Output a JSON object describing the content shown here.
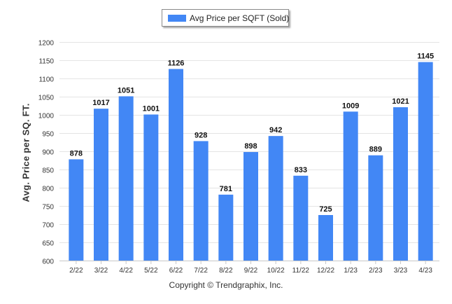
{
  "chart_data": {
    "type": "bar",
    "categories": [
      "2/22",
      "3/22",
      "4/22",
      "5/22",
      "6/22",
      "7/22",
      "8/22",
      "9/22",
      "10/22",
      "11/22",
      "12/22",
      "1/23",
      "2/23",
      "3/23",
      "4/23"
    ],
    "series": [
      {
        "name": "Avg Price per SQFT (Sold)",
        "values": [
          878,
          1017,
          1051,
          1001,
          1126,
          928,
          781,
          898,
          942,
          833,
          725,
          1009,
          889,
          1021,
          1145
        ]
      }
    ],
    "ylabel": "Avg. Price per SQ. FT.",
    "xlabel": "",
    "ylim": [
      600,
      1200
    ],
    "yticks": [
      600,
      650,
      700,
      750,
      800,
      850,
      900,
      950,
      1000,
      1050,
      1100,
      1150,
      1200
    ],
    "grid": true,
    "legend": "top-center",
    "bar_color": "#4287f5",
    "footer": "Copyright © Trendgraphix, Inc."
  }
}
